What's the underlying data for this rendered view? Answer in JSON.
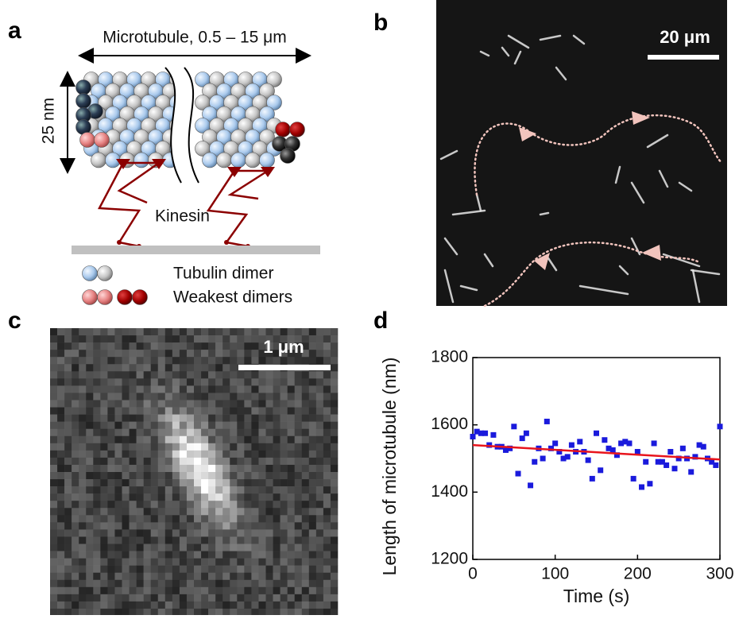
{
  "panel_labels": {
    "a": "a",
    "b": "b",
    "c": "c",
    "d": "d"
  },
  "panel_a": {
    "length_label": "Microtubule, 0.5 – 15 μm",
    "diameter_label": "25 nm",
    "motor_label": "Kinesin",
    "legend": [
      "Tubulin dimer",
      "Weakest dimers"
    ]
  },
  "panel_b": {
    "scale_bar": "20 μm"
  },
  "panel_c": {
    "scale_bar": "1 μm"
  },
  "chart_data": {
    "type": "scatter",
    "xlabel": "Time (s)",
    "ylabel": "Length of microtubule (nm)",
    "xlim": [
      0,
      300
    ],
    "xticks": [
      0,
      100,
      200,
      300
    ],
    "ylim": [
      1200,
      1800
    ],
    "yticks": [
      1200,
      1400,
      1600,
      1800
    ],
    "series": [
      {
        "mode": "markers",
        "color": "#1a1adc",
        "x": [
          0,
          5,
          10,
          15,
          20,
          25,
          30,
          35,
          40,
          45,
          50,
          55,
          60,
          65,
          70,
          75,
          80,
          85,
          90,
          95,
          100,
          105,
          110,
          115,
          120,
          125,
          130,
          135,
          140,
          145,
          150,
          155,
          160,
          165,
          170,
          175,
          180,
          185,
          190,
          195,
          200,
          205,
          210,
          215,
          220,
          225,
          230,
          235,
          240,
          245,
          250,
          255,
          260,
          265,
          270,
          275,
          280,
          285,
          290,
          295,
          300
        ],
        "values": [
          1565,
          1580,
          1575,
          1575,
          1540,
          1570,
          1535,
          1535,
          1525,
          1530,
          1595,
          1455,
          1560,
          1575,
          1420,
          1490,
          1530,
          1500,
          1610,
          1530,
          1545,
          1520,
          1500,
          1505,
          1540,
          1520,
          1550,
          1520,
          1495,
          1440,
          1575,
          1465,
          1555,
          1530,
          1525,
          1510,
          1545,
          1550,
          1545,
          1440,
          1520,
          1415,
          1490,
          1425,
          1545,
          1490,
          1490,
          1480,
          1520,
          1470,
          1500,
          1530,
          1500,
          1460,
          1505,
          1540,
          1535,
          1500,
          1490,
          1480,
          1595
        ]
      },
      {
        "mode": "line",
        "color": "#e8141c",
        "x": [
          0,
          300
        ],
        "values": [
          1540,
          1497
        ]
      }
    ]
  }
}
